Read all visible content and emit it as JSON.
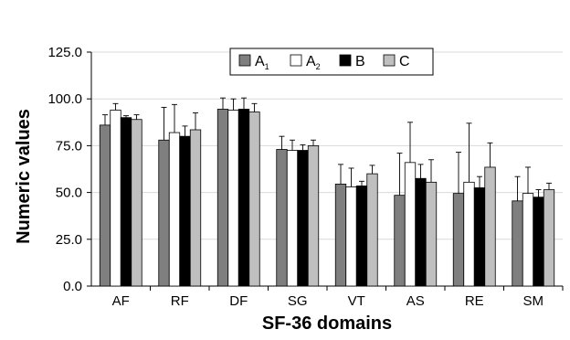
{
  "chart_data": {
    "type": "bar",
    "title": "",
    "xlabel": "SF-36 domains",
    "ylabel": "Numeric values",
    "ylim": [
      0,
      125
    ],
    "yticks": [
      "0.0",
      "25.0",
      "50.0",
      "75.0",
      "100.0",
      "125.0"
    ],
    "ytick_values": [
      0,
      25,
      50,
      75,
      100,
      125
    ],
    "grid": true,
    "legend_position": "top-center",
    "categories": [
      "AF",
      "RF",
      "DF",
      "SG",
      "VT",
      "AS",
      "RE",
      "SM"
    ],
    "series": [
      {
        "name": "A",
        "subscript": "1",
        "color": "#7f7f7f",
        "values": [
          86,
          78,
          94.5,
          73,
          54.5,
          48.5,
          49.5,
          45.5
        ],
        "errors": [
          5.5,
          17.5,
          6,
          7,
          10.5,
          22.5,
          22,
          13
        ]
      },
      {
        "name": "A",
        "subscript": "2",
        "color": "#ffffff",
        "values": [
          94,
          82,
          94,
          72.5,
          53,
          66,
          55.5,
          49.5
        ],
        "errors": [
          3.5,
          15,
          6,
          5.5,
          10,
          21.5,
          31.5,
          14
        ]
      },
      {
        "name": "B",
        "subscript": "",
        "color": "#000000",
        "values": [
          90,
          80,
          94.5,
          72.5,
          53.5,
          57.5,
          52.5,
          47.5
        ],
        "errors": [
          1,
          5.5,
          6,
          3,
          2.5,
          7.5,
          6,
          4
        ]
      },
      {
        "name": "C",
        "subscript": "",
        "color": "#bfbfbf",
        "values": [
          89,
          83.5,
          93,
          75,
          60,
          55.5,
          63.5,
          51.5
        ],
        "errors": [
          2.5,
          9,
          4.5,
          3,
          4.5,
          12,
          13,
          3.5
        ]
      }
    ]
  }
}
